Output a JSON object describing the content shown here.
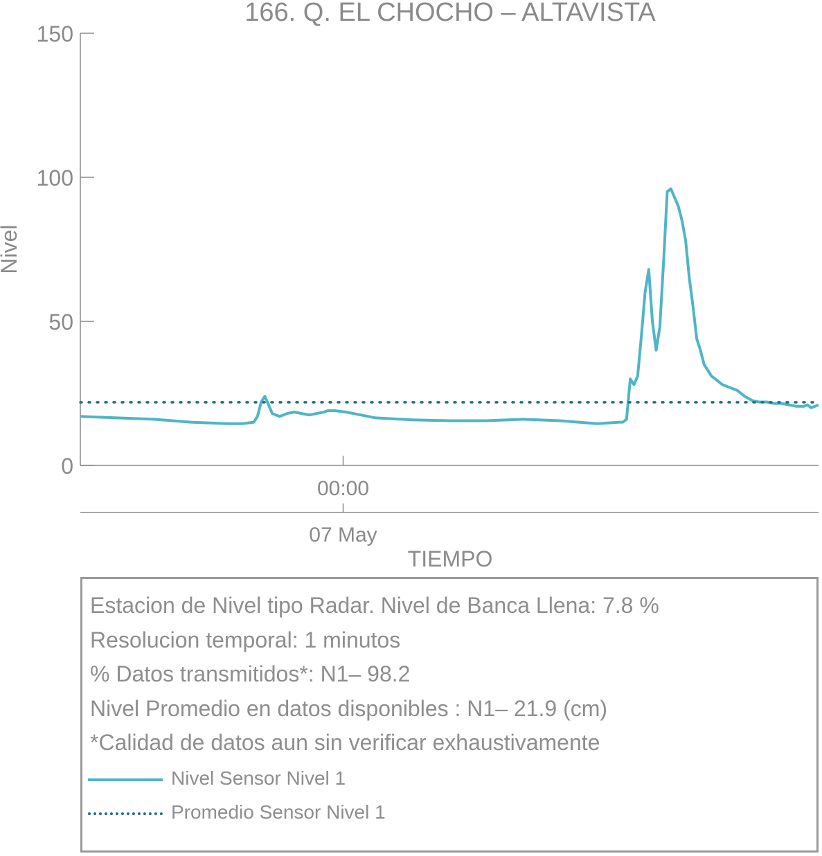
{
  "chart_data": {
    "type": "line",
    "title": "166. Q. EL CHOCHO – ALTAVISTA",
    "xlabel": "TIEMPO",
    "ylabel": "Nivel",
    "ylim": [
      0,
      150
    ],
    "yticks": [
      "0",
      "50",
      "100",
      "150"
    ],
    "xticks": [
      {
        "x": 0.356,
        "label": "00:00",
        "sublabel": "07 May"
      }
    ],
    "grid": false,
    "x_unit": "fraction_of_time_window",
    "series": [
      {
        "name": "Nivel Sensor Nivel 1",
        "style": "solid",
        "x": [
          0,
          0.05,
          0.1,
          0.15,
          0.2,
          0.22,
          0.235,
          0.24,
          0.245,
          0.25,
          0.255,
          0.26,
          0.265,
          0.27,
          0.28,
          0.29,
          0.3,
          0.31,
          0.32,
          0.33,
          0.335,
          0.34,
          0.345,
          0.35,
          0.36,
          0.38,
          0.4,
          0.45,
          0.5,
          0.55,
          0.6,
          0.65,
          0.7,
          0.72,
          0.73,
          0.735,
          0.74,
          0.742,
          0.745,
          0.75,
          0.755,
          0.76,
          0.765,
          0.77,
          0.775,
          0.78,
          0.785,
          0.79,
          0.795,
          0.8,
          0.805,
          0.81,
          0.815,
          0.82,
          0.825,
          0.83,
          0.835,
          0.84,
          0.845,
          0.85,
          0.855,
          0.86,
          0.865,
          0.87,
          0.88,
          0.89,
          0.9,
          0.91,
          0.92,
          0.93,
          0.94,
          0.95,
          0.96,
          0.97,
          0.98,
          0.985,
          0.99,
          1.0
        ],
        "y": [
          17,
          16.5,
          16,
          15,
          14.5,
          14.5,
          15,
          17,
          22,
          24,
          21,
          18,
          17.5,
          17,
          18,
          18.5,
          18,
          17.5,
          18,
          18.5,
          19,
          19,
          19,
          18.8,
          18.5,
          17.5,
          16.5,
          15.8,
          15.5,
          15.5,
          16,
          15.5,
          14.5,
          14.8,
          15,
          15,
          16,
          22,
          30,
          28,
          31,
          45,
          60,
          68,
          50,
          40,
          48,
          70,
          95,
          96,
          93,
          90,
          85,
          78,
          65,
          55,
          44,
          40,
          35,
          33,
          31,
          30,
          29,
          28,
          27,
          26,
          24,
          22.5,
          22,
          22,
          21.5,
          21.5,
          21,
          20.5,
          20.5,
          21,
          20,
          21
        ]
      },
      {
        "name": "Promedio Sensor Nivel 1",
        "style": "dotted",
        "x": [
          0,
          1
        ],
        "y": [
          21.9,
          21.9
        ]
      }
    ]
  },
  "info": {
    "lines": [
      "Estacion de Nivel tipo Radar. Nivel de Banca Llena:  7.8 %",
      "Resolucion temporal: 1 minutos",
      "% Datos transmitidos*: N1– 98.2",
      "Nivel Promedio en datos disponibles : N1– 21.9 (cm)",
      "*Calidad de datos aun sin verificar exhaustivamente"
    ]
  },
  "legend": {
    "items": [
      {
        "label": "Nivel Sensor Nivel 1",
        "style": "solid"
      },
      {
        "label": "Promedio Sensor Nivel 1",
        "style": "dotted"
      }
    ]
  },
  "colors": {
    "series": "#4fb5c6",
    "mean": "#1f6f86",
    "axis": "#8a8a8a",
    "text": "#8e8e8e"
  }
}
